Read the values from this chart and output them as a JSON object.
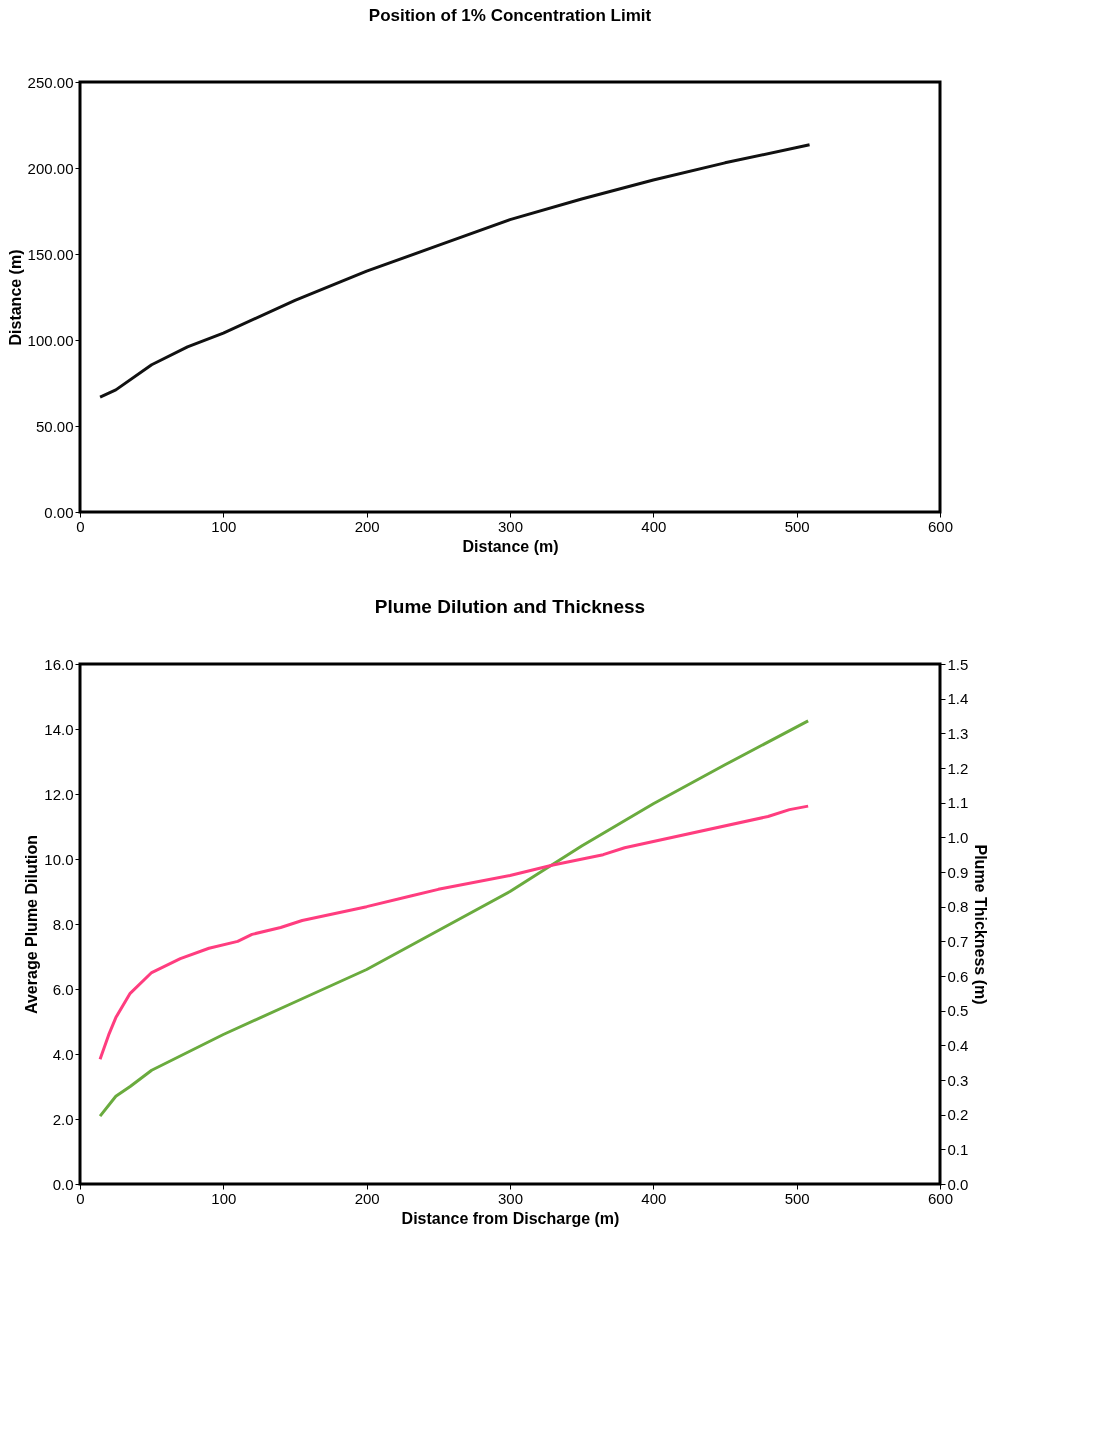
{
  "chart_data": [
    {
      "type": "line",
      "title": "Position of 1% Concentration Limit",
      "xlabel": "Distance (m)",
      "ylabel": "Distance (m)",
      "series": [
        {
          "color": "#111111",
          "x": [
            14,
            25,
            50,
            75,
            100,
            150,
            200,
            250,
            300,
            350,
            400,
            450,
            509
          ],
          "values": [
            66.8,
            71,
            85.6,
            96,
            104,
            123,
            140,
            155,
            170,
            182,
            193,
            203,
            213.5
          ]
        }
      ],
      "xlim": [
        0,
        600
      ],
      "xticks": [
        0,
        100,
        200,
        300,
        400,
        500,
        600
      ],
      "ylim": [
        0,
        250
      ],
      "yticks": [
        {
          "value": 0,
          "label": "0.00"
        },
        {
          "value": 50,
          "label": "50.00"
        },
        {
          "value": 100,
          "label": "100.00"
        },
        {
          "value": 150,
          "label": "150.00"
        },
        {
          "value": 200,
          "label": "200.00"
        },
        {
          "value": 250,
          "label": "250.00"
        }
      ],
      "grid": false
    },
    {
      "type": "line",
      "title": "Plume Dilution and Thickness",
      "xlabel": "Distance from Discharge (m)",
      "ylabel": "Average Plume Dilution",
      "y2label": "Plume Thickness (m)",
      "series": [
        {
          "color": "#6aab3e",
          "x": [
            14,
            25,
            35,
            50,
            100,
            150,
            200,
            250,
            300,
            350,
            400,
            450,
            508
          ],
          "values": [
            2.09,
            2.7,
            3.0,
            3.5,
            4.6,
            5.6,
            6.6,
            7.8,
            9.0,
            10.4,
            11.7,
            12.9,
            14.25
          ]
        },
        {
          "color": "#ff3d7f",
          "axis": "y2",
          "x": [
            14,
            20,
            25,
            35,
            50,
            70,
            90,
            110,
            120,
            140,
            155,
            200,
            230,
            250,
            300,
            330,
            365,
            380,
            480,
            495,
            508
          ],
          "values": [
            0.36,
            0.43,
            0.48,
            0.55,
            0.61,
            0.65,
            0.68,
            0.7,
            0.72,
            0.74,
            0.76,
            0.8,
            0.83,
            0.85,
            0.89,
            0.92,
            0.95,
            0.97,
            1.06,
            1.08,
            1.09
          ]
        }
      ],
      "xlim": [
        0,
        600
      ],
      "xticks": [
        0,
        100,
        200,
        300,
        400,
        500,
        600
      ],
      "ylim": [
        0,
        16
      ],
      "yticks": [
        {
          "value": 0,
          "label": "0.0"
        },
        {
          "value": 2,
          "label": "2.0"
        },
        {
          "value": 4,
          "label": "4.0"
        },
        {
          "value": 6,
          "label": "6.0"
        },
        {
          "value": 8,
          "label": "8.0"
        },
        {
          "value": 10,
          "label": "10.0"
        },
        {
          "value": 12,
          "label": "12.0"
        },
        {
          "value": 14,
          "label": "14.0"
        },
        {
          "value": 16,
          "label": "16.0"
        }
      ],
      "y2lim": [
        0,
        1.5
      ],
      "y2ticks": [
        {
          "value": 0,
          "label": "0.0"
        },
        0.1,
        0.2,
        0.3,
        0.4,
        0.5,
        0.6,
        0.7,
        0.8,
        0.9,
        {
          "value": 1,
          "label": "1.0"
        },
        1.1,
        1.2,
        1.3,
        1.4,
        1.5
      ],
      "grid": false
    }
  ]
}
